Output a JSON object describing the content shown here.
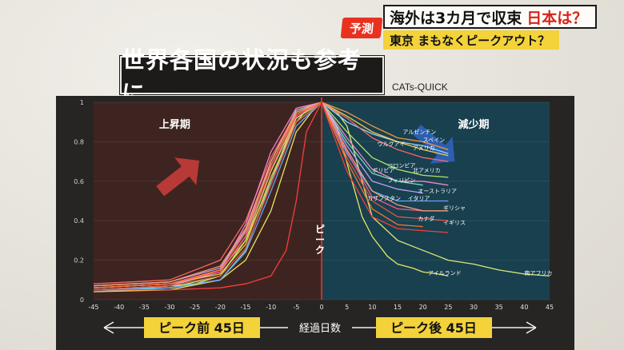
{
  "caption": {
    "badge": "予測",
    "headline_a": "海外は3カ月で収束",
    "headline_b": "日本は？",
    "subline": "東京 まもなくピークアウト？"
  },
  "title": "世界各国の状況も参考に",
  "source": "CATs-QUICK",
  "colors": {
    "rise_bg": "#3e2420",
    "fall_bg": "#18404f",
    "peak_line": "#c8342a",
    "rise_arrow": "#b83a36",
    "fall_arrow": "#2d5fb0",
    "caption_red": "#e8321f",
    "caption_yellow": "#f3d23a"
  },
  "chart_data": {
    "type": "line",
    "xlabel": "経過日数",
    "ylabel": "",
    "xlim": [
      -45,
      45
    ],
    "ylim": [
      0,
      1
    ],
    "x_ticks": [
      "-45",
      "-40",
      "-35",
      "-30",
      "-25",
      "-20",
      "-15",
      "-10",
      "-5",
      "0",
      "5",
      "10",
      "15",
      "20",
      "25",
      "30",
      "35",
      "40",
      "45"
    ],
    "y_ticks": [
      "0",
      "0.2",
      "0.4",
      "0.6",
      "0.8",
      "1"
    ],
    "regions": {
      "rise_label": "上昇期",
      "fall_label": "減少期"
    },
    "peak_label": "ピーク",
    "before_label": "ピーク前 45日",
    "after_label": "ピーク後 45日",
    "series": [
      {
        "name": "南アフリカ",
        "color": "#e8f07a",
        "x": [
          -45,
          -35,
          -25,
          -20,
          -15,
          -10,
          -7,
          -5,
          -3,
          0,
          3,
          5,
          8,
          10,
          15,
          20,
          25,
          30,
          35,
          40,
          45
        ],
        "y": [
          0.05,
          0.06,
          0.08,
          0.12,
          0.3,
          0.6,
          0.8,
          0.9,
          0.96,
          1.0,
          0.95,
          0.88,
          0.6,
          0.42,
          0.3,
          0.25,
          0.2,
          0.18,
          0.15,
          0.13,
          0.12
        ]
      },
      {
        "name": "アイルランド",
        "color": "#f0f060",
        "x": [
          -45,
          -30,
          -20,
          -15,
          -10,
          -5,
          -2,
          0,
          3,
          6,
          8,
          10,
          13,
          15,
          18,
          20,
          23,
          25
        ],
        "y": [
          0.04,
          0.05,
          0.1,
          0.2,
          0.45,
          0.85,
          0.95,
          1.0,
          0.88,
          0.6,
          0.42,
          0.32,
          0.22,
          0.18,
          0.16,
          0.14,
          0.13,
          0.12
        ]
      },
      {
        "name": "アルゼンチン",
        "color": "#ff9a3c",
        "x": [
          -45,
          -30,
          -20,
          -15,
          -10,
          -5,
          0,
          5,
          10,
          15,
          20,
          25
        ],
        "y": [
          0.06,
          0.08,
          0.15,
          0.3,
          0.6,
          0.92,
          1.0,
          0.95,
          0.88,
          0.82,
          0.8,
          0.76
        ]
      },
      {
        "name": "ウルグアイ",
        "color": "#9fd9ff",
        "x": [
          -45,
          -30,
          -20,
          -15,
          -10,
          -5,
          0,
          5,
          10,
          15,
          20,
          25
        ],
        "y": [
          0.05,
          0.07,
          0.14,
          0.32,
          0.7,
          0.96,
          1.0,
          0.9,
          0.84,
          0.8,
          0.78,
          0.74
        ]
      },
      {
        "name": "スペイン",
        "color": "#ffcf4a",
        "x": [
          -45,
          -30,
          -20,
          -15,
          -10,
          -5,
          0,
          5,
          10,
          15,
          20,
          25
        ],
        "y": [
          0.06,
          0.08,
          0.13,
          0.28,
          0.62,
          0.9,
          1.0,
          0.93,
          0.85,
          0.8,
          0.76,
          0.73
        ]
      },
      {
        "name": "アメリカ",
        "color": "#ff6b6b",
        "x": [
          -45,
          -30,
          -20,
          -15,
          -10,
          -5,
          0,
          5,
          10,
          15,
          20,
          25
        ],
        "y": [
          0.08,
          0.1,
          0.2,
          0.4,
          0.72,
          0.95,
          1.0,
          0.92,
          0.82,
          0.76,
          0.72,
          0.7
        ]
      },
      {
        "name": "コロンビア",
        "color": "#b9f06a",
        "x": [
          -45,
          -30,
          -20,
          -15,
          -10,
          -5,
          0,
          5,
          10,
          15,
          20,
          25
        ],
        "y": [
          0.05,
          0.06,
          0.12,
          0.3,
          0.65,
          0.92,
          1.0,
          0.85,
          0.72,
          0.66,
          0.63,
          0.62
        ]
      },
      {
        "name": "北アメリカ",
        "color": "#ff8ad0",
        "x": [
          -45,
          -30,
          -20,
          -15,
          -10,
          -5,
          0,
          5,
          10,
          15,
          20,
          25
        ],
        "y": [
          0.05,
          0.07,
          0.15,
          0.38,
          0.75,
          0.97,
          1.0,
          0.82,
          0.66,
          0.6,
          0.6,
          0.58
        ]
      },
      {
        "name": "ボリビア",
        "color": "#7fe3c4",
        "x": [
          -45,
          -30,
          -20,
          -15,
          -10,
          -5,
          0,
          5,
          10,
          15,
          20
        ],
        "y": [
          0.04,
          0.06,
          0.1,
          0.25,
          0.6,
          0.9,
          1.0,
          0.8,
          0.64,
          0.6,
          0.58
        ]
      },
      {
        "name": "フィリピン",
        "color": "#c7a3ff",
        "x": [
          -45,
          -30,
          -20,
          -15,
          -10,
          -5,
          0,
          5,
          10,
          15,
          20
        ],
        "y": [
          0.07,
          0.09,
          0.16,
          0.35,
          0.68,
          0.94,
          1.0,
          0.78,
          0.6,
          0.56,
          0.54
        ]
      },
      {
        "name": "オーストラリア",
        "color": "#6aa8ff",
        "x": [
          -45,
          -30,
          -20,
          -15,
          -10,
          -5,
          0,
          5,
          10,
          15,
          20,
          25
        ],
        "y": [
          0.05,
          0.06,
          0.1,
          0.24,
          0.55,
          0.88,
          1.0,
          0.74,
          0.55,
          0.5,
          0.5,
          0.5
        ]
      },
      {
        "name": "カザフスタン",
        "color": "#ff5a8a",
        "x": [
          -45,
          -30,
          -20,
          -15,
          -10,
          -5,
          0,
          5,
          10,
          15,
          20
        ],
        "y": [
          0.06,
          0.08,
          0.14,
          0.32,
          0.66,
          0.93,
          1.0,
          0.75,
          0.52,
          0.46,
          0.45
        ]
      },
      {
        "name": "イタリア",
        "color": "#ffa07a",
        "x": [
          -45,
          -30,
          -20,
          -15,
          -10,
          -5,
          0,
          5,
          10,
          15,
          20,
          25
        ],
        "y": [
          0.07,
          0.09,
          0.17,
          0.36,
          0.7,
          0.95,
          1.0,
          0.76,
          0.55,
          0.48,
          0.45,
          0.45
        ]
      },
      {
        "name": "ギリシャ",
        "color": "#e05a4a",
        "x": [
          -45,
          -30,
          -20,
          -15,
          -10,
          -5,
          0,
          5,
          10,
          15,
          20,
          25
        ],
        "y": [
          0.05,
          0.07,
          0.12,
          0.26,
          0.58,
          0.9,
          1.0,
          0.72,
          0.5,
          0.42,
          0.41,
          0.4
        ]
      },
      {
        "name": "カナダ",
        "color": "#ff7a2a",
        "x": [
          -45,
          -30,
          -20,
          -15,
          -10,
          -5,
          0,
          5,
          10,
          15,
          20
        ],
        "y": [
          0.06,
          0.08,
          0.15,
          0.34,
          0.68,
          0.94,
          1.0,
          0.7,
          0.46,
          0.38,
          0.37
        ]
      },
      {
        "name": "イギリス",
        "color": "#ff4040",
        "x": [
          -45,
          -30,
          -20,
          -15,
          -10,
          -7,
          -5,
          -3,
          0,
          5,
          10,
          15,
          20,
          25
        ],
        "y": [
          0.05,
          0.05,
          0.06,
          0.08,
          0.12,
          0.25,
          0.5,
          0.85,
          1.0,
          0.65,
          0.42,
          0.36,
          0.35,
          0.34
        ]
      }
    ]
  }
}
